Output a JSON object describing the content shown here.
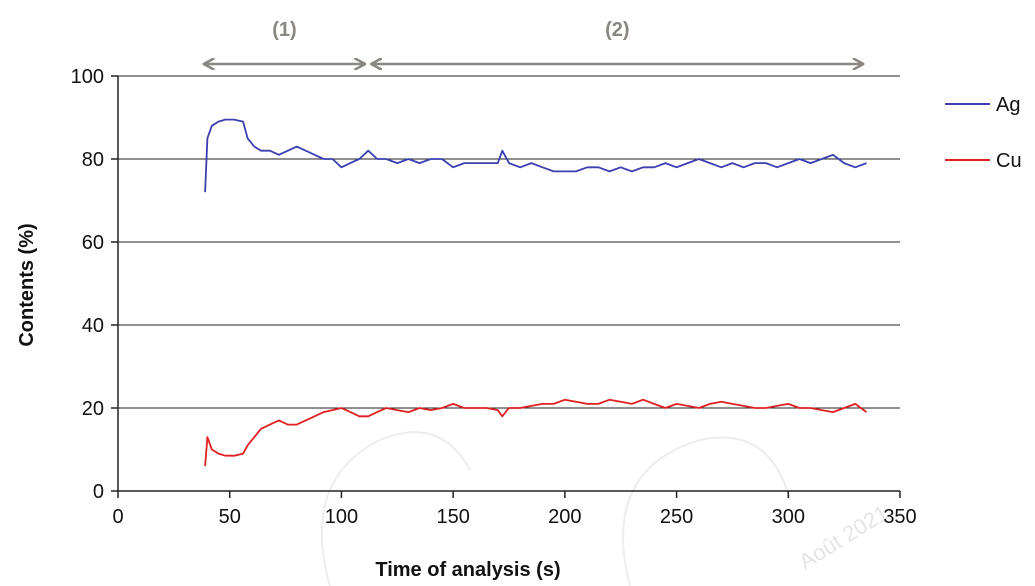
{
  "chart_data": {
    "type": "line",
    "title": "",
    "xlabel": "Time of analysis (s)",
    "ylabel": "Contents (%)",
    "xlim": [
      0,
      350
    ],
    "ylim": [
      0,
      100
    ],
    "xticks": [
      "0",
      "50",
      "100",
      "150",
      "200",
      "250",
      "300",
      "350"
    ],
    "yticks": [
      "0",
      "20",
      "40",
      "60",
      "80",
      "100"
    ],
    "grid": "horizontal",
    "legend_position": "right",
    "series": [
      {
        "name": "Ag",
        "color": "#3b3fb0",
        "x": [
          39,
          40,
          42,
          45,
          48,
          52,
          56,
          58,
          61,
          64,
          68,
          72,
          76,
          80,
          84,
          88,
          92,
          96,
          100,
          104,
          108,
          112,
          116,
          120,
          125,
          130,
          135,
          140,
          145,
          150,
          155,
          160,
          165,
          170,
          172,
          175,
          180,
          185,
          190,
          195,
          200,
          205,
          210,
          215,
          220,
          225,
          230,
          235,
          240,
          245,
          250,
          255,
          260,
          265,
          270,
          275,
          280,
          285,
          290,
          295,
          300,
          305,
          310,
          315,
          320,
          325,
          330,
          335
        ],
        "y": [
          72,
          85,
          88,
          89,
          89.5,
          89.5,
          89,
          85,
          83,
          82,
          82,
          81,
          82,
          83,
          82,
          81,
          80,
          80,
          78,
          79,
          80,
          82,
          80,
          80,
          79,
          80,
          79,
          80,
          80,
          78,
          79,
          79,
          79,
          79,
          82,
          79,
          78,
          79,
          78,
          77,
          77,
          77,
          78,
          78,
          77,
          78,
          77,
          78,
          78,
          79,
          78,
          79,
          80,
          79,
          78,
          79,
          78,
          79,
          79,
          78,
          79,
          80,
          79,
          80,
          81,
          79,
          78,
          79
        ]
      },
      {
        "name": "Cu",
        "color": "#e02020",
        "x": [
          39,
          40,
          42,
          45,
          48,
          52,
          56,
          58,
          61,
          64,
          68,
          72,
          76,
          80,
          84,
          88,
          92,
          96,
          100,
          104,
          108,
          112,
          116,
          120,
          125,
          130,
          135,
          140,
          145,
          150,
          155,
          160,
          165,
          170,
          172,
          175,
          180,
          185,
          190,
          195,
          200,
          205,
          210,
          215,
          220,
          225,
          230,
          235,
          240,
          245,
          250,
          255,
          260,
          265,
          270,
          275,
          280,
          285,
          290,
          295,
          300,
          305,
          310,
          315,
          320,
          325,
          330,
          335
        ],
        "y": [
          6,
          13,
          10,
          9,
          8.5,
          8.5,
          9,
          11,
          13,
          15,
          16,
          17,
          16,
          16,
          17,
          18,
          19,
          19.5,
          20,
          19,
          18,
          18,
          19,
          20,
          19.5,
          19,
          20,
          19.5,
          20,
          21,
          20,
          20,
          20,
          19.5,
          18,
          20,
          20,
          20.5,
          21,
          21,
          22,
          21.5,
          21,
          21,
          22,
          21.5,
          21,
          22,
          21,
          20,
          21,
          20.5,
          20,
          21,
          21.5,
          21,
          20.5,
          20,
          20,
          20.5,
          21,
          20,
          20,
          19.5,
          19,
          20,
          21,
          19
        ]
      }
    ],
    "annotations": [
      {
        "label": "(1)",
        "x_start": 37,
        "x_end": 112
      },
      {
        "label": "(2)",
        "x_start": 112,
        "x_end": 335
      }
    ]
  },
  "watermark": {
    "text": "Août 2021"
  }
}
